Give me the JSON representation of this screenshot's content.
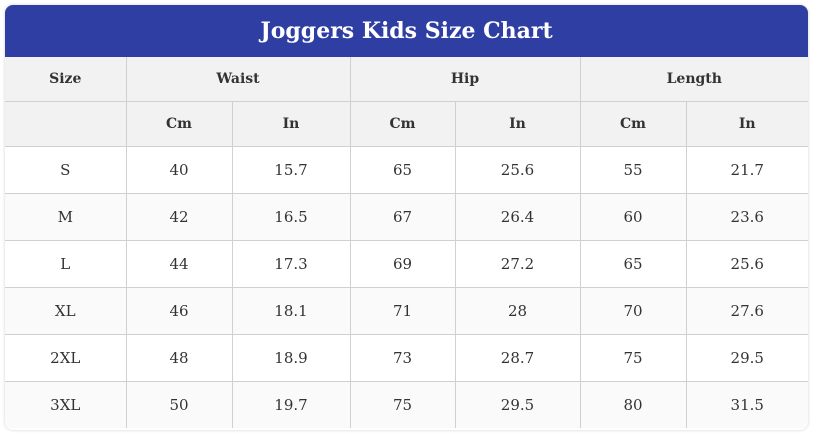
{
  "title": "Joggers Kids Size Chart",
  "header": {
    "size_label": "Size",
    "groups": [
      "Waist",
      "Hip",
      "Length"
    ],
    "units": [
      "Cm",
      "In",
      "Cm",
      "In",
      "Cm",
      "In"
    ]
  },
  "rows": [
    [
      "S",
      "40",
      "15.7",
      "65",
      "25.6",
      "55",
      "21.7"
    ],
    [
      "M",
      "42",
      "16.5",
      "67",
      "26.4",
      "60",
      "23.6"
    ],
    [
      "L",
      "44",
      "17.3",
      "69",
      "27.2",
      "65",
      "25.6"
    ],
    [
      "XL",
      "46",
      "18.1",
      "71",
      "28",
      "70",
      "27.6"
    ],
    [
      "2XL",
      "48",
      "18.9",
      "73",
      "28.7",
      "75",
      "29.5"
    ],
    [
      "3XL",
      "50",
      "19.7",
      "75",
      "29.5",
      "80",
      "31.5"
    ]
  ],
  "colors": {
    "title_bar": "#2f3ea3",
    "header_bg": "#f2f2f2",
    "border": "#d0d0d0"
  }
}
